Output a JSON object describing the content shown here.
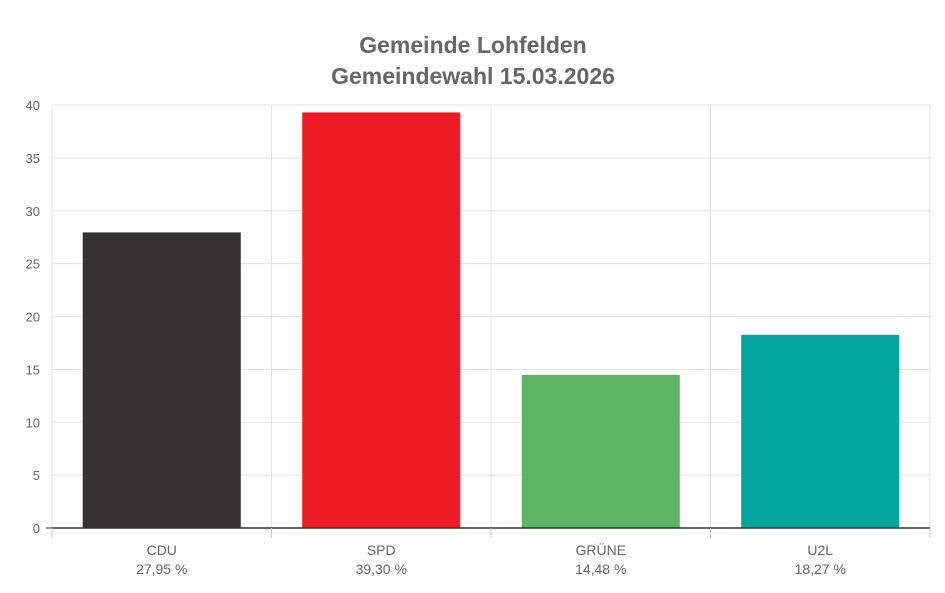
{
  "chart_data": {
    "type": "bar",
    "title": "Gemeinde Lohfelden",
    "subtitle": "Gemeindewahl 15.03.2026",
    "categories": [
      "CDU",
      "SPD",
      "GRÜNE",
      "U2L"
    ],
    "value_labels": [
      "27,95 %",
      "39,30 %",
      "14,48 %",
      "18,27 %"
    ],
    "values": [
      27.95,
      39.3,
      14.48,
      18.27
    ],
    "colors": [
      "#333132",
      "#ED1C24",
      "#5BB562",
      "#00A59E"
    ],
    "ylim": [
      0,
      40
    ],
    "yticks": [
      0,
      5,
      10,
      15,
      20,
      25,
      30,
      35,
      40
    ],
    "xlabel": "",
    "ylabel": "",
    "grid": true,
    "legend": false
  }
}
